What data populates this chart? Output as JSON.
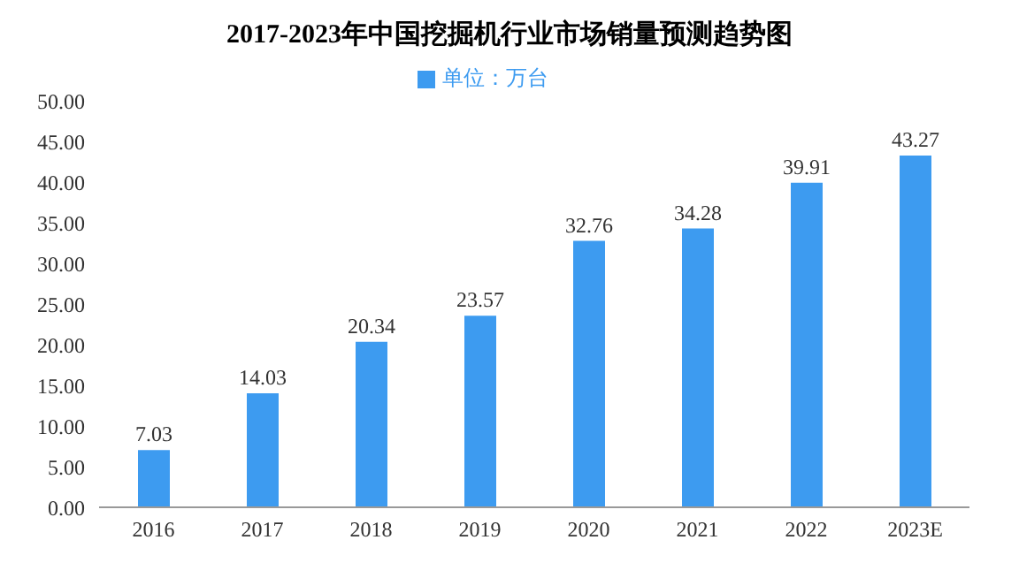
{
  "chart_data": {
    "type": "bar",
    "title": "2017-2023年中国挖掘机行业市场销量预测趋势图",
    "categories": [
      "2016",
      "2017",
      "2018",
      "2019",
      "2020",
      "2021",
      "2022",
      "2023E"
    ],
    "series": [
      {
        "name": "单位：万台",
        "color": "#3d9bf0",
        "values": [
          7.03,
          14.03,
          20.34,
          23.57,
          32.76,
          34.28,
          39.91,
          43.27
        ]
      }
    ],
    "ylim": [
      0,
      50
    ],
    "yticks": [
      {
        "value": 0,
        "label": "0.00"
      },
      {
        "value": 5,
        "label": "5.00"
      },
      {
        "value": 10,
        "label": "10.00"
      },
      {
        "value": 15,
        "label": "15.00"
      },
      {
        "value": 20,
        "label": "20.00"
      },
      {
        "value": 25,
        "label": "25.00"
      },
      {
        "value": 30,
        "label": "30.00"
      },
      {
        "value": 35,
        "label": "35.00"
      },
      {
        "value": 40,
        "label": "40.00"
      },
      {
        "value": 45,
        "label": "45.00"
      },
      {
        "value": 50,
        "label": "50.00"
      }
    ],
    "data_labels": true,
    "legend": "top",
    "grid": false
  }
}
